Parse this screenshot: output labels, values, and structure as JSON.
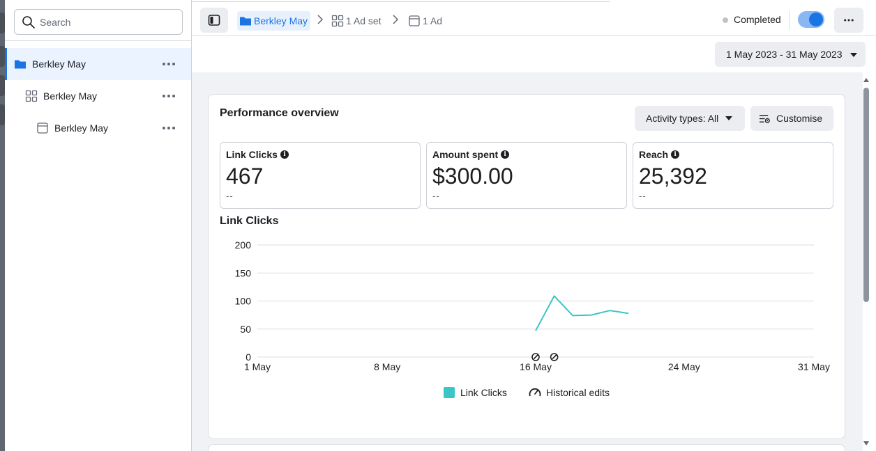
{
  "sidebar": {
    "search_placeholder": "Search",
    "items": [
      {
        "label": "Berkley May",
        "icon": "folder-icon"
      },
      {
        "label": "Berkley May",
        "icon": "ad-set-grid-icon"
      },
      {
        "label": "Berkley May",
        "icon": "ad-icon"
      }
    ]
  },
  "header": {
    "breadcrumb": [
      {
        "label": "Berkley May",
        "icon": "folder-icon"
      },
      {
        "label": "1 Ad set",
        "icon": "ad-set-grid-icon"
      },
      {
        "label": "1 Ad",
        "icon": "ad-icon"
      }
    ],
    "status": "Completed",
    "toggle_on": true
  },
  "date_range": "1 May 2023 - 31 May 2023",
  "performance": {
    "title": "Performance overview",
    "activity_button": "Activity types: All",
    "customise_button": "Customise",
    "metrics": [
      {
        "label": "Link Clicks",
        "value": "467",
        "delta": "--"
      },
      {
        "label": "Amount spent",
        "value": "$300.00",
        "delta": "--"
      },
      {
        "label": "Reach",
        "value": "25,392",
        "delta": "--"
      }
    ],
    "chart_title": "Link Clicks"
  },
  "colors": {
    "accent": "#1b74e4",
    "series": "#3ac6c6"
  },
  "chart_data": {
    "type": "line",
    "title": "Link Clicks",
    "xlabel": "",
    "ylabel": "",
    "x_ticks": [
      "1 May",
      "8 May",
      "16 May",
      "24 May",
      "31 May"
    ],
    "y_ticks": [
      0,
      50,
      100,
      150,
      200
    ],
    "ylim": [
      0,
      200
    ],
    "xlim": [
      1,
      31
    ],
    "grid": true,
    "legend": "bottom",
    "legend_entries": [
      "Link Clicks",
      "Historical edits"
    ],
    "series": [
      {
        "name": "Link Clicks",
        "x": [
          16,
          17,
          18,
          19,
          20,
          21
        ],
        "values": [
          47,
          109,
          74,
          75,
          83,
          78
        ]
      }
    ],
    "historical_edits_x": [
      16,
      17
    ]
  }
}
